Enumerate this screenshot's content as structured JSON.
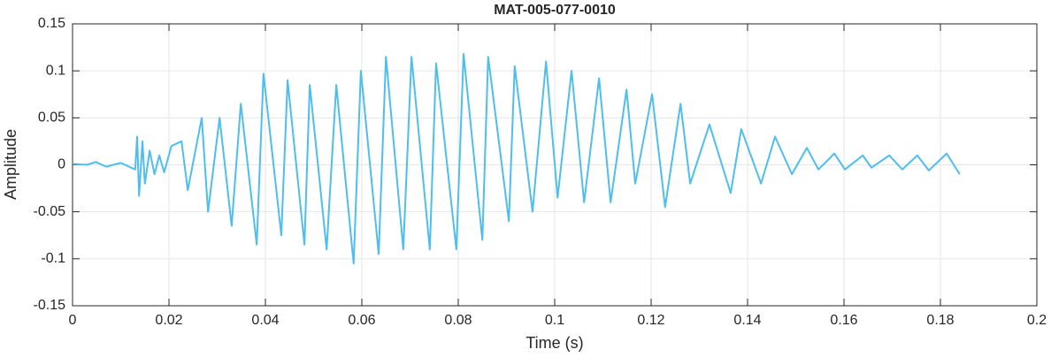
{
  "chart_data": {
    "type": "line",
    "title": "MAT-005-077-0010",
    "x_label": "Time (s)",
    "y_label": "Amplitude",
    "x": [
      0,
      0.003,
      0.0048,
      0.007,
      0.01,
      0.013,
      0.0134,
      0.0138,
      0.0145,
      0.015,
      0.016,
      0.017,
      0.018,
      0.019,
      0.0205,
      0.0226,
      0.0239,
      0.0268,
      0.0281,
      0.0305,
      0.033,
      0.0349,
      0.0382,
      0.0396,
      0.0433,
      0.0446,
      0.0481,
      0.0492,
      0.0527,
      0.0547,
      0.0583,
      0.0598,
      0.0635,
      0.065,
      0.0686,
      0.0703,
      0.0741,
      0.0754,
      0.0796,
      0.0811,
      0.085,
      0.0862,
      0.0905,
      0.0917,
      0.0954,
      0.0982,
      0.1006,
      0.1035,
      0.1061,
      0.1092,
      0.1116,
      0.1149,
      0.1167,
      0.1202,
      0.1229,
      0.1261,
      0.1281,
      0.1321,
      0.1365,
      0.1387,
      0.1428,
      0.1457,
      0.1492,
      0.1523,
      0.1547,
      0.158,
      0.1602,
      0.1639,
      0.1657,
      0.1694,
      0.1721,
      0.1752,
      0.1776,
      0.1813,
      0.184
    ],
    "values": [
      0.001,
      0,
      0.003,
      -0.002,
      0.002,
      -0.005,
      0.03,
      -0.033,
      0.025,
      -0.02,
      0.015,
      -0.01,
      0.01,
      -0.008,
      0.02,
      0.025,
      -0.027,
      0.05,
      -0.05,
      0.05,
      -0.065,
      0.065,
      -0.085,
      0.097,
      -0.075,
      0.09,
      -0.085,
      0.085,
      -0.09,
      0.085,
      -0.105,
      0.1,
      -0.095,
      0.115,
      -0.09,
      0.115,
      -0.09,
      0.108,
      -0.09,
      0.118,
      -0.08,
      0.115,
      -0.06,
      0.105,
      -0.05,
      0.11,
      -0.035,
      0.1,
      -0.04,
      0.092,
      -0.04,
      0.08,
      -0.02,
      0.075,
      -0.045,
      0.065,
      -0.02,
      0.043,
      -0.03,
      0.038,
      -0.02,
      0.03,
      -0.01,
      0.018,
      -0.005,
      0.012,
      -0.005,
      0.01,
      -0.003,
      0.01,
      -0.005,
      0.01,
      -0.006,
      0.012,
      -0.01
    ],
    "color": "#4dbeee",
    "xlim": [
      0,
      0.2
    ],
    "xticks": [
      0,
      0.02,
      0.04,
      0.06,
      0.08,
      0.1,
      0.12,
      0.14,
      0.16,
      0.18,
      0.2
    ],
    "ylim": [
      -0.15,
      0.15
    ],
    "yticks": [
      -0.15,
      -0.1,
      -0.05,
      0,
      0.05,
      0.1,
      0.15
    ],
    "grid": true
  }
}
